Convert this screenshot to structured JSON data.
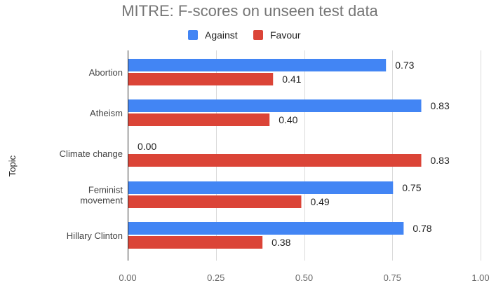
{
  "chart_data": {
    "type": "bar",
    "orientation": "horizontal",
    "title": "MITRE: F-scores on unseen test data",
    "ylabel": "Topic",
    "xlabel": "",
    "categories": [
      "Abortion",
      "Atheism",
      "Climate change",
      "Feminist movement",
      "Hillary Clinton"
    ],
    "category_lines": [
      [
        "Abortion"
      ],
      [
        "Atheism"
      ],
      [
        "Climate change"
      ],
      [
        "Feminist",
        "movement"
      ],
      [
        "Hillary Clinton"
      ]
    ],
    "series": [
      {
        "name": "Against",
        "color": "#4285f4",
        "values": [
          0.73,
          0.83,
          0.0,
          0.75,
          0.78
        ],
        "labels": [
          "0.73",
          "0.83",
          "0.00",
          "0.75",
          "0.78"
        ]
      },
      {
        "name": "Favour",
        "color": "#db4437",
        "values": [
          0.41,
          0.4,
          0.83,
          0.49,
          0.38
        ],
        "labels": [
          "0.41",
          "0.40",
          "0.83",
          "0.49",
          "0.38"
        ]
      }
    ],
    "xlim": [
      0,
      1
    ],
    "xticks": [
      0,
      0.25,
      0.5,
      0.75,
      1.0
    ],
    "xtick_labels": [
      "0.00",
      "0.25",
      "0.50",
      "0.75",
      "1.00"
    ],
    "grid": true,
    "legend": "top-center"
  }
}
